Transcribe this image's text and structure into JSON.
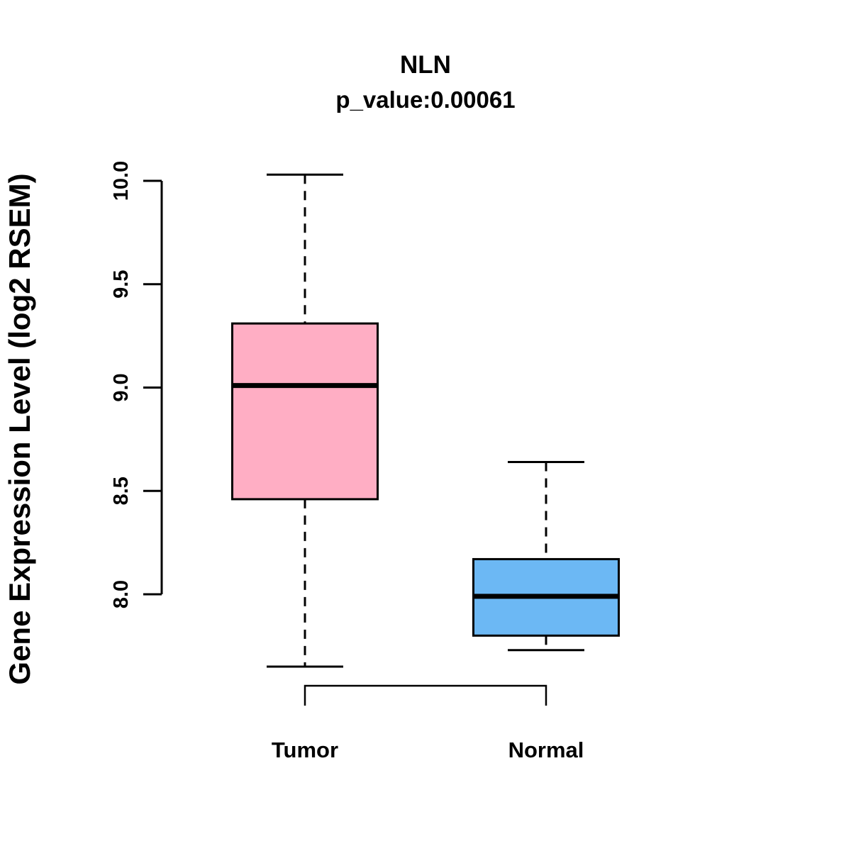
{
  "chart_data": {
    "type": "boxplot",
    "title": "NLN",
    "subtitle": "p_value:0.00061",
    "p_value": 0.00061,
    "gene": "NLN",
    "ylabel": "Gene Expression Level (log2 RSEM)",
    "xlabel": "",
    "categories": [
      "Tumor",
      "Normal"
    ],
    "series": [
      {
        "name": "Tumor",
        "fill_color": "#FFAEC4",
        "whisker_low": 7.65,
        "q1": 8.46,
        "median": 9.01,
        "q3": 9.31,
        "whisker_high": 10.03
      },
      {
        "name": "Normal",
        "fill_color": "#6CB8F4",
        "whisker_low": 7.73,
        "q1": 7.8,
        "median": 7.99,
        "q3": 8.17,
        "whisker_high": 8.64
      }
    ],
    "yticks": [
      {
        "value": 8.0,
        "label": "8.0"
      },
      {
        "value": 8.5,
        "label": "8.5"
      },
      {
        "value": 9.0,
        "label": "9.0"
      },
      {
        "value": 9.5,
        "label": "9.5"
      },
      {
        "value": 10.0,
        "label": "10.0"
      }
    ],
    "ylim": [
      7.5,
      10.1
    ],
    "grid": false,
    "legend": "none",
    "stroke_color": "#000000",
    "comparison_bracket": {
      "from": "Tumor",
      "to": "Normal"
    }
  }
}
